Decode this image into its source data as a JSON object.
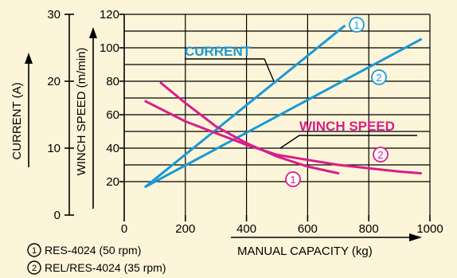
{
  "chart_data": {
    "type": "line",
    "x": {
      "label": "MANUAL CAPACITY (kg)",
      "range": [
        0,
        1000
      ],
      "ticks": [
        0,
        200,
        400,
        600,
        800,
        1000
      ]
    },
    "y_speed": {
      "label": "WINCH SPEED (m/min)",
      "range": [
        0,
        120
      ],
      "ticks": [
        20,
        40,
        60,
        80,
        100,
        120
      ]
    },
    "y_current": {
      "label": "CURRENT (A)",
      "range": [
        0,
        30
      ],
      "ticks": [
        0,
        10,
        20,
        30
      ]
    },
    "grid": true,
    "series": [
      {
        "group": "current",
        "marker": "1",
        "color": "#1a9ad6",
        "points": [
          [
            70,
            17
          ],
          [
            720,
            113
          ]
        ]
      },
      {
        "group": "current",
        "marker": "2",
        "color": "#1a9ad6",
        "points": [
          [
            70,
            17
          ],
          [
            970,
            105
          ]
        ]
      },
      {
        "group": "winch_speed",
        "marker": "1",
        "color": "#d91e8a",
        "points": [
          [
            120,
            79
          ],
          [
            200,
            67
          ],
          [
            300,
            53
          ],
          [
            400,
            43
          ],
          [
            500,
            35
          ],
          [
            600,
            29
          ],
          [
            700,
            25
          ]
        ]
      },
      {
        "group": "winch_speed",
        "marker": "2",
        "color": "#d91e8a",
        "points": [
          [
            70,
            68
          ],
          [
            200,
            56
          ],
          [
            300,
            49
          ],
          [
            400,
            42
          ],
          [
            500,
            36
          ],
          [
            600,
            33
          ],
          [
            700,
            30
          ],
          [
            800,
            28
          ],
          [
            900,
            26
          ],
          [
            970,
            25
          ]
        ]
      }
    ],
    "annotations": {
      "current_label": "CURRENT",
      "winch_speed_label": "WINCH SPEED",
      "marker_1": "1",
      "marker_2": "2"
    },
    "legend": [
      {
        "marker": "1",
        "text": "RES-4024 (50 rpm)"
      },
      {
        "marker": "2",
        "text": "REL/RES-4024 (35 rpm)"
      }
    ],
    "colors": {
      "current": "#1a9ad6",
      "winch_speed": "#d91e8a",
      "background": "#fdf5d9",
      "ink": "#000000"
    }
  }
}
